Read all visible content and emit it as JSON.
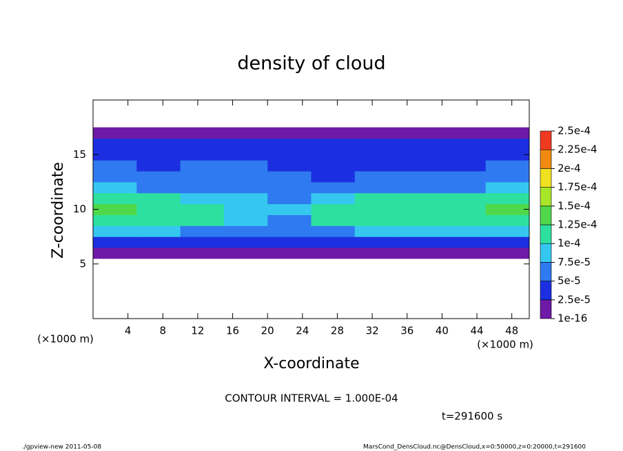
{
  "chart_data": {
    "type": "heatmap",
    "title": "density of cloud",
    "x_label": "X-coordinate",
    "y_label": "Z-coordinate",
    "x_unit": "(×1000 m)",
    "y_unit": "(×1000 m)",
    "xlim": [
      0,
      50
    ],
    "xticks": [
      4,
      8,
      12,
      16,
      20,
      24,
      28,
      32,
      36,
      40,
      44,
      48
    ],
    "ylim": [
      0,
      20
    ],
    "yticks": [
      5,
      10,
      15
    ],
    "x": [
      2.5,
      7.5,
      12.5,
      17.5,
      22.5,
      27.5,
      32.5,
      37.5,
      42.5,
      47.5
    ],
    "z": [
      6,
      7,
      8,
      9,
      10,
      11,
      12,
      13,
      14,
      15,
      16,
      17
    ],
    "values": [
      [
        1e-05,
        1e-05,
        1e-05,
        1e-05,
        1e-05,
        1e-05,
        1e-05,
        1e-05,
        1e-05,
        1e-05
      ],
      [
        3e-05,
        3e-05,
        3e-05,
        3e-05,
        3e-05,
        3e-05,
        3e-05,
        3e-05,
        3e-05,
        3e-05
      ],
      [
        9e-05,
        8e-05,
        7e-05,
        6e-05,
        6e-05,
        7e-05,
        8e-05,
        8e-05,
        9e-05,
        9e-05
      ],
      [
        0.00012,
        0.00011,
        0.00011,
        8e-05,
        7e-05,
        0.0001,
        0.00011,
        0.00011,
        0.00011,
        0.00012
      ],
      [
        0.00013,
        0.00012,
        0.00011,
        9e-05,
        8e-05,
        0.00012,
        0.00012,
        0.00012,
        0.00012,
        0.00013
      ],
      [
        0.00012,
        0.0001,
        9e-05,
        8e-05,
        7e-05,
        9e-05,
        0.00011,
        0.00011,
        0.00011,
        0.00012
      ],
      [
        8e-05,
        6e-05,
        6e-05,
        7e-05,
        6e-05,
        5e-05,
        6e-05,
        6e-05,
        7e-05,
        8e-05
      ],
      [
        6e-05,
        5e-05,
        5e-05,
        6e-05,
        5e-05,
        4e-05,
        5e-05,
        5e-05,
        5e-05,
        6e-05
      ],
      [
        5e-05,
        4e-05,
        5e-05,
        5e-05,
        4e-05,
        4e-05,
        4e-05,
        4e-05,
        4e-05,
        5e-05
      ],
      [
        4e-05,
        4e-05,
        4e-05,
        4e-05,
        4e-05,
        4e-05,
        4e-05,
        4e-05,
        4e-05,
        4e-05
      ],
      [
        3e-05,
        3e-05,
        3e-05,
        3e-05,
        3e-05,
        3e-05,
        3e-05,
        3e-05,
        3e-05,
        3e-05
      ],
      [
        1e-05,
        1e-05,
        1e-05,
        1e-05,
        1e-05,
        1e-05,
        1e-05,
        1e-05,
        1e-05,
        1e-05
      ]
    ],
    "colorbar": {
      "ticks": [
        {
          "value": 1e-16,
          "label": "1e-16"
        },
        {
          "value": 2.5e-05,
          "label": "2.5e-5"
        },
        {
          "value": 5e-05,
          "label": "5e-5"
        },
        {
          "value": 7.5e-05,
          "label": "7.5e-5"
        },
        {
          "value": 0.0001,
          "label": "1e-4"
        },
        {
          "value": 0.000125,
          "label": "1.25e-4"
        },
        {
          "value": 0.00015,
          "label": "1.5e-4"
        },
        {
          "value": 0.000175,
          "label": "1.75e-4"
        },
        {
          "value": 0.0002,
          "label": "2e-4"
        },
        {
          "value": 0.000225,
          "label": "2.25e-4"
        },
        {
          "value": 0.00025,
          "label": "2.5e-4"
        }
      ],
      "colors": [
        "#6f1aa6",
        "#1c2fe0",
        "#2f7af0",
        "#35c7f0",
        "#2ee0a0",
        "#4fd84a",
        "#a8e62a",
        "#f0e020",
        "#f08a10",
        "#f03a20"
      ]
    },
    "contour_note": "CONTOUR INTERVAL = 1.000E-04",
    "time_note": "t=291600 s",
    "footer_left": "./gpview-new  2011-05-08",
    "footer_right": "MarsCond_DensCloud.nc@DensCloud,x=0:50000,z=0:20000,t=291600"
  }
}
